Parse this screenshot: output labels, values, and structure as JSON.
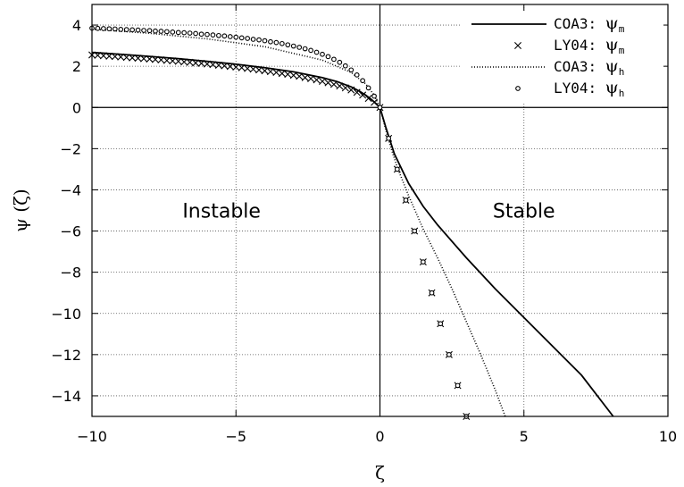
{
  "chart_data": {
    "type": "line",
    "xlabel": "ζ",
    "ylabel": "ψ (ζ)",
    "xlim": [
      -10,
      10
    ],
    "ylim": [
      -15,
      5
    ],
    "xticks": [
      -10,
      -5,
      0,
      5,
      10
    ],
    "yticks": [
      4,
      2,
      0,
      -2,
      -4,
      -6,
      -8,
      -10,
      -12,
      -14
    ],
    "grid": true,
    "legend_position": "top-right",
    "annotations": [
      {
        "text": "Instable",
        "x": -5.5,
        "y": -5
      },
      {
        "text": "Stable",
        "x": 5.0,
        "y": -5
      }
    ],
    "series": [
      {
        "name": "COA3: ψm",
        "label_main": "COA3: ",
        "label_sub": "m",
        "style": "solid",
        "x": [
          -10,
          -9,
          -8,
          -7,
          -6,
          -5,
          -4,
          -3,
          -2,
          -1.5,
          -1,
          -0.7,
          -0.5,
          -0.3,
          -0.2,
          -0.1,
          0,
          0.2,
          0.5,
          1,
          1.5,
          2,
          3,
          4,
          5,
          6,
          7,
          8.1
        ],
        "y": [
          2.67,
          2.58,
          2.48,
          2.37,
          2.24,
          2.1,
          1.93,
          1.73,
          1.45,
          1.26,
          1.0,
          0.78,
          0.6,
          0.39,
          0.27,
          0.14,
          0,
          -0.95,
          -2.25,
          -3.7,
          -4.8,
          -5.7,
          -7.3,
          -8.8,
          -10.2,
          -11.6,
          -13.0,
          -15.0
        ]
      },
      {
        "name": "LY04: ψm",
        "label_main": "LY04: ",
        "label_sub": "m",
        "style": "x-markers",
        "x": [
          -10,
          -9.8,
          -9.6,
          -9.4,
          -9.2,
          -9.0,
          -8.8,
          -8.6,
          -8.4,
          -8.2,
          -8.0,
          -7.8,
          -7.6,
          -7.4,
          -7.2,
          -7.0,
          -6.8,
          -6.6,
          -6.4,
          -6.2,
          -6.0,
          -5.8,
          -5.6,
          -5.4,
          -5.2,
          -5.0,
          -4.8,
          -4.6,
          -4.4,
          -4.2,
          -4.0,
          -3.8,
          -3.6,
          -3.4,
          -3.2,
          -3.0,
          -2.8,
          -2.6,
          -2.4,
          -2.2,
          -2.0,
          -1.8,
          -1.6,
          -1.4,
          -1.2,
          -1.0,
          -0.8,
          -0.6,
          -0.4,
          -0.2,
          0,
          0.3,
          0.6,
          0.9,
          1.2,
          1.5,
          1.8,
          2.1,
          2.4,
          2.7,
          3.0
        ],
        "y": [
          2.55,
          2.53,
          2.51,
          2.49,
          2.47,
          2.45,
          2.43,
          2.41,
          2.39,
          2.37,
          2.35,
          2.33,
          2.31,
          2.28,
          2.26,
          2.24,
          2.21,
          2.19,
          2.16,
          2.14,
          2.11,
          2.08,
          2.05,
          2.02,
          1.99,
          1.96,
          1.93,
          1.89,
          1.86,
          1.82,
          1.78,
          1.74,
          1.7,
          1.65,
          1.61,
          1.56,
          1.51,
          1.45,
          1.4,
          1.34,
          1.27,
          1.2,
          1.12,
          1.04,
          0.95,
          0.85,
          0.73,
          0.6,
          0.44,
          0.25,
          0,
          -1.5,
          -3.0,
          -4.5,
          -6.0,
          -7.5,
          -9.0,
          -10.5,
          -12.0,
          -13.5,
          -15.0
        ]
      },
      {
        "name": "COA3: ψh",
        "label_main": "COA3: ",
        "label_sub": "h",
        "style": "dotted",
        "x": [
          -10,
          -8,
          -6,
          -4,
          -2,
          -1,
          -0.5,
          -0.2,
          0,
          0.3,
          0.6,
          1,
          1.5,
          2,
          2.5,
          3,
          3.5,
          4,
          4.35
        ],
        "y": [
          3.8,
          3.6,
          3.33,
          2.95,
          2.3,
          1.7,
          1.15,
          0.6,
          0,
          -1.6,
          -2.9,
          -4.3,
          -5.9,
          -7.3,
          -8.8,
          -10.4,
          -12.0,
          -13.7,
          -15.0
        ]
      },
      {
        "name": "LY04: ψh",
        "label_main": "LY04: ",
        "label_sub": "h",
        "style": "circle-markers",
        "x": [
          -10,
          -9.8,
          -9.6,
          -9.4,
          -9.2,
          -9.0,
          -8.8,
          -8.6,
          -8.4,
          -8.2,
          -8.0,
          -7.8,
          -7.6,
          -7.4,
          -7.2,
          -7.0,
          -6.8,
          -6.6,
          -6.4,
          -6.2,
          -6.0,
          -5.8,
          -5.6,
          -5.4,
          -5.2,
          -5.0,
          -4.8,
          -4.6,
          -4.4,
          -4.2,
          -4.0,
          -3.8,
          -3.6,
          -3.4,
          -3.2,
          -3.0,
          -2.8,
          -2.6,
          -2.4,
          -2.2,
          -2.0,
          -1.8,
          -1.6,
          -1.4,
          -1.2,
          -1.0,
          -0.8,
          -0.6,
          -0.4,
          -0.2,
          0,
          0.3,
          0.6,
          0.9,
          1.2,
          1.5,
          1.8,
          2.1,
          2.4,
          2.7,
          3.0
        ],
        "y": [
          3.85,
          3.84,
          3.83,
          3.82,
          3.81,
          3.79,
          3.78,
          3.77,
          3.76,
          3.74,
          3.73,
          3.71,
          3.7,
          3.68,
          3.66,
          3.64,
          3.63,
          3.61,
          3.59,
          3.56,
          3.54,
          3.52,
          3.49,
          3.47,
          3.44,
          3.41,
          3.38,
          3.35,
          3.31,
          3.28,
          3.24,
          3.19,
          3.15,
          3.1,
          3.04,
          2.98,
          2.92,
          2.85,
          2.77,
          2.68,
          2.58,
          2.47,
          2.34,
          2.19,
          2.02,
          1.82,
          1.58,
          1.3,
          0.95,
          0.55,
          0,
          -1.5,
          -3.0,
          -4.5,
          -6.0,
          -7.5,
          -9.0,
          -10.5,
          -12.0,
          -13.5,
          -15.0
        ]
      }
    ]
  }
}
